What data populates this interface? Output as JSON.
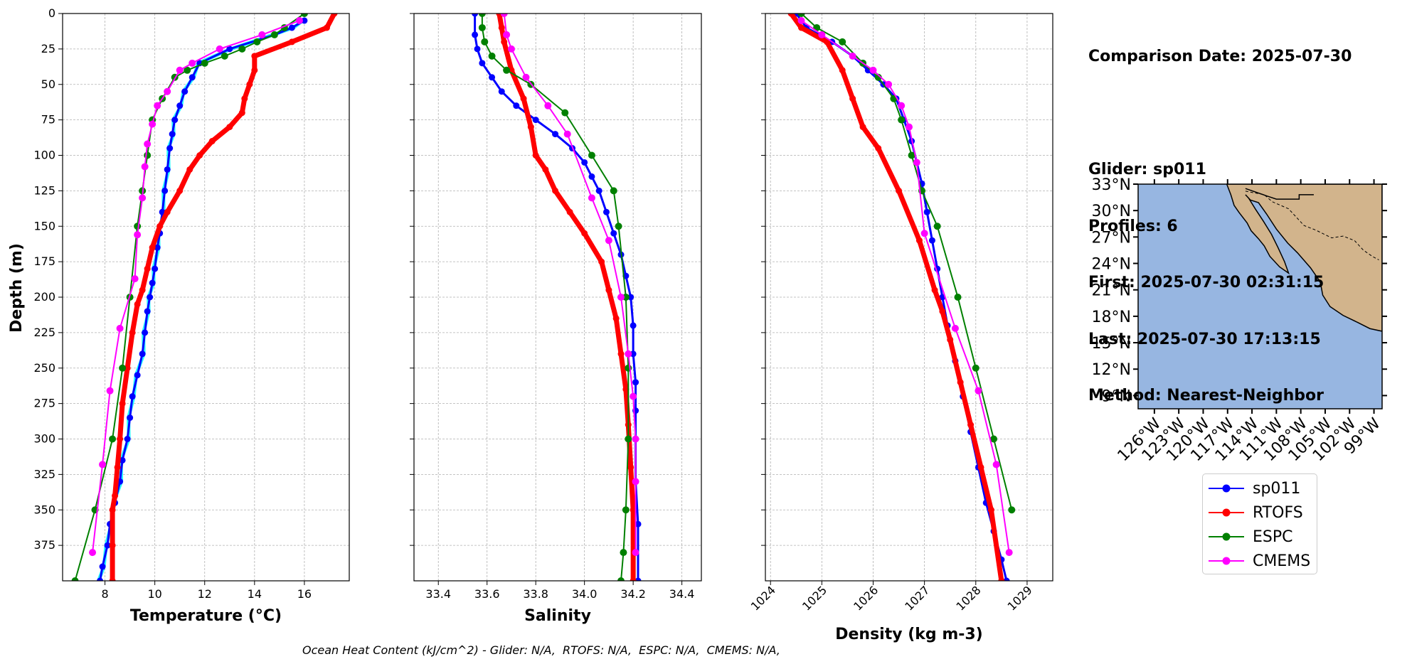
{
  "chart_data": [
    {
      "type": "line",
      "xlabel": "Temperature (°C)",
      "ylabel": "Depth (m)",
      "xlim": [
        6.3,
        17.8
      ],
      "ylim": [
        400,
        0
      ],
      "inverted_y": true,
      "grid": true,
      "xticks": [
        8,
        10,
        12,
        14,
        16
      ],
      "yticks": [
        0,
        25,
        50,
        75,
        100,
        125,
        150,
        175,
        200,
        225,
        250,
        275,
        300,
        325,
        350,
        375
      ],
      "series": [
        {
          "name": "sp011",
          "color": "#0000ff",
          "marker": "circle",
          "x": [
            16.0,
            15.5,
            14.8,
            13.0,
            11.8,
            11.5,
            11.2,
            11.0,
            10.8,
            10.7,
            10.6,
            10.5,
            10.4,
            10.3,
            10.2,
            10.1,
            10.0,
            9.9,
            9.8,
            9.7,
            9.6,
            9.5,
            9.3,
            9.1,
            9.0,
            8.9,
            8.7,
            8.6,
            8.4,
            8.2,
            8.1,
            7.9,
            7.8
          ],
          "y": [
            5,
            10,
            15,
            25,
            35,
            45,
            55,
            65,
            75,
            85,
            95,
            110,
            125,
            140,
            155,
            165,
            180,
            190,
            200,
            210,
            225,
            240,
            255,
            270,
            285,
            300,
            315,
            330,
            345,
            360,
            375,
            390,
            400
          ],
          "extra": {
            "raw_color": "#00ffff"
          }
        },
        {
          "name": "RTOFS",
          "color": "#ff0000",
          "marker": "circle",
          "x": [
            17.2,
            16.9,
            15.5,
            14.0,
            14.0,
            13.8,
            13.6,
            13.5,
            13.0,
            12.3,
            11.8,
            11.4,
            11.0,
            10.5,
            10.2,
            9.9,
            9.7,
            9.5,
            9.3,
            9.1,
            8.9,
            8.7,
            8.6,
            8.5,
            8.4,
            8.3,
            8.3,
            8.3
          ],
          "y": [
            0,
            10,
            20,
            30,
            40,
            50,
            60,
            70,
            80,
            90,
            100,
            110,
            125,
            140,
            150,
            165,
            180,
            195,
            205,
            225,
            250,
            275,
            300,
            320,
            340,
            350,
            375,
            400
          ]
        },
        {
          "name": "ESPC",
          "color": "#008000",
          "marker": "circle",
          "x": [
            16.0,
            15.2,
            14.8,
            14.1,
            13.5,
            12.8,
            12.0,
            11.3,
            10.8,
            10.3,
            9.9,
            9.7,
            9.5,
            9.3,
            9.0,
            8.7,
            8.3,
            7.6,
            6.8
          ],
          "y": [
            0,
            10,
            15,
            20,
            25,
            30,
            35,
            40,
            45,
            60,
            75,
            100,
            125,
            150,
            200,
            250,
            300,
            350,
            400
          ]
        },
        {
          "name": "CMEMS",
          "color": "#ff00ff",
          "marker": "circle",
          "x": [
            15.8,
            14.3,
            12.6,
            11.5,
            11.0,
            10.5,
            10.1,
            9.9,
            9.7,
            9.6,
            9.5,
            9.3,
            9.2,
            8.6,
            8.2,
            7.9,
            7.5
          ],
          "y": [
            5,
            15,
            25,
            35,
            40,
            55,
            65,
            78,
            92,
            108,
            130,
            156,
            187,
            222,
            266,
            318,
            380
          ]
        }
      ]
    },
    {
      "type": "line",
      "xlabel": "Salinity",
      "ylabel": "",
      "xlim": [
        33.3,
        34.48
      ],
      "ylim": [
        400,
        0
      ],
      "inverted_y": true,
      "grid": true,
      "xticks": [
        33.4,
        33.6,
        33.8,
        34.0,
        34.2,
        34.4
      ],
      "series": [
        {
          "name": "sp011",
          "color": "#0000ff",
          "marker": "circle",
          "x": [
            33.55,
            33.55,
            33.56,
            33.58,
            33.62,
            33.66,
            33.72,
            33.8,
            33.88,
            33.95,
            34.0,
            34.03,
            34.06,
            34.09,
            34.12,
            34.15,
            34.17,
            34.19,
            34.2,
            34.2,
            34.21,
            34.21,
            34.21,
            34.21,
            34.22,
            34.22
          ],
          "y": [
            0,
            15,
            25,
            35,
            45,
            55,
            65,
            75,
            85,
            95,
            105,
            115,
            125,
            140,
            155,
            170,
            185,
            200,
            220,
            240,
            260,
            280,
            300,
            330,
            360,
            400
          ]
        },
        {
          "name": "RTOFS",
          "color": "#ff0000",
          "marker": "circle",
          "x": [
            33.65,
            33.66,
            33.67,
            33.7,
            33.75,
            33.78,
            33.8,
            33.84,
            33.88,
            33.94,
            34.0,
            34.07,
            34.1,
            34.13,
            34.15,
            34.17,
            34.18,
            34.19,
            34.2,
            34.2
          ],
          "y": [
            0,
            10,
            20,
            40,
            60,
            80,
            100,
            110,
            125,
            140,
            155,
            175,
            195,
            215,
            240,
            265,
            290,
            320,
            350,
            400
          ]
        },
        {
          "name": "ESPC",
          "color": "#008000",
          "marker": "circle",
          "x": [
            33.58,
            33.58,
            33.59,
            33.62,
            33.68,
            33.78,
            33.92,
            34.03,
            34.12,
            34.14,
            34.17,
            34.18,
            34.18,
            34.17,
            34.16,
            34.15
          ],
          "y": [
            0,
            10,
            20,
            30,
            40,
            50,
            70,
            100,
            125,
            150,
            200,
            250,
            300,
            350,
            380,
            400
          ]
        },
        {
          "name": "CMEMS",
          "color": "#ff00ff",
          "marker": "circle",
          "x": [
            33.67,
            33.68,
            33.7,
            33.76,
            33.85,
            33.93,
            34.03,
            34.1,
            34.15,
            34.18,
            34.2,
            34.21,
            34.21,
            34.21
          ],
          "y": [
            0,
            15,
            25,
            45,
            65,
            85,
            130,
            160,
            200,
            240,
            270,
            300,
            330,
            380
          ]
        }
      ]
    },
    {
      "type": "line",
      "xlabel": "Density (kg m-3)",
      "ylabel": "",
      "xlim": [
        1023.9,
        1029.5
      ],
      "ylim": [
        400,
        0
      ],
      "inverted_y": true,
      "grid": true,
      "xticks": [
        1024,
        1025,
        1026,
        1027,
        1028,
        1029
      ],
      "series": [
        {
          "name": "sp011",
          "color": "#0000ff",
          "marker": "circle",
          "x": [
            1024.5,
            1024.7,
            1025.2,
            1025.6,
            1025.9,
            1026.2,
            1026.45,
            1026.6,
            1026.75,
            1026.85,
            1026.95,
            1027.05,
            1027.15,
            1027.25,
            1027.35,
            1027.45,
            1027.6,
            1027.75,
            1027.9,
            1028.05,
            1028.2,
            1028.35,
            1028.5,
            1028.6
          ],
          "y": [
            0,
            10,
            20,
            30,
            40,
            50,
            60,
            75,
            90,
            105,
            120,
            140,
            160,
            180,
            200,
            220,
            245,
            270,
            295,
            320,
            345,
            365,
            385,
            400
          ]
        },
        {
          "name": "RTOFS",
          "color": "#ff0000",
          "marker": "circle",
          "x": [
            1024.4,
            1024.6,
            1025.1,
            1025.4,
            1025.6,
            1025.8,
            1026.1,
            1026.5,
            1026.9,
            1027.2,
            1027.35,
            1027.5,
            1027.7,
            1027.9,
            1028.1,
            1028.3,
            1028.5
          ],
          "y": [
            0,
            10,
            20,
            40,
            60,
            80,
            95,
            125,
            160,
            195,
            210,
            230,
            260,
            290,
            320,
            350,
            400
          ]
        },
        {
          "name": "ESPC",
          "color": "#008000",
          "marker": "circle",
          "x": [
            1024.6,
            1024.9,
            1025.4,
            1025.8,
            1026.1,
            1026.4,
            1026.55,
            1026.75,
            1026.95,
            1027.25,
            1027.65,
            1028.0,
            1028.35,
            1028.7
          ],
          "y": [
            0,
            10,
            20,
            35,
            45,
            60,
            75,
            100,
            125,
            150,
            200,
            250,
            300,
            350
          ]
        },
        {
          "name": "CMEMS",
          "color": "#ff00ff",
          "marker": "circle",
          "x": [
            1024.6,
            1025.0,
            1025.6,
            1026.0,
            1026.3,
            1026.55,
            1026.7,
            1026.85,
            1027.0,
            1027.6,
            1028.05,
            1028.4,
            1028.65
          ],
          "y": [
            5,
            15,
            30,
            40,
            50,
            65,
            80,
            105,
            155,
            222,
            266,
            318,
            380
          ]
        }
      ]
    }
  ],
  "info": {
    "comparison_date": "Comparison Date: 2025-07-30",
    "glider": "Glider: sp011",
    "profiles": "Profiles: 6",
    "first": "First: 2025-07-30 02:31:15",
    "last": "Last: 2025-07-30 17:13:15",
    "method": "Method: Nearest-Neighbor"
  },
  "map": {
    "lat_labels": [
      "33°N",
      "30°N",
      "27°N",
      "24°N",
      "21°N",
      "18°N",
      "15°N",
      "12°N",
      "9°N"
    ],
    "lon_labels": [
      "126°W",
      "123°W",
      "120°W",
      "117°W",
      "114°W",
      "111°W",
      "108°W",
      "105°W",
      "102°W",
      "99°W"
    ],
    "ocean_color": "#97b6e1",
    "land_color": "#d2b48c"
  },
  "legend": {
    "placement": "below-map",
    "items": [
      {
        "label": "sp011",
        "color": "#0000ff"
      },
      {
        "label": "RTOFS",
        "color": "#ff0000"
      },
      {
        "label": "ESPC",
        "color": "#008000"
      },
      {
        "label": "CMEMS",
        "color": "#ff00ff"
      }
    ]
  },
  "footer": "Ocean Heat Content (kJ/cm^2) - Glider: N/A,  RTOFS: N/A,  ESPC: N/A,  CMEMS: N/A,"
}
